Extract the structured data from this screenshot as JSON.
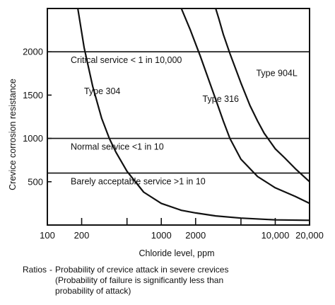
{
  "chart_data": {
    "type": "line",
    "title": "",
    "xlabel": "Chloride level, ppm",
    "ylabel": "Crevice corrosion resistance",
    "x_scale": "log",
    "xlim": [
      100,
      20000
    ],
    "ylim": [
      0,
      2500
    ],
    "grid": false,
    "x_tick_labels": [
      {
        "value": 100,
        "label": "100"
      },
      {
        "value": 200,
        "label": "200"
      },
      {
        "value": 1000,
        "label": "1000"
      },
      {
        "value": 2000,
        "label": "2000"
      },
      {
        "value": 10000,
        "label": "10,000"
      },
      {
        "value": 20000,
        "label": "20,000"
      }
    ],
    "x_unlabeled_ticks": [
      500,
      5000
    ],
    "y_ticks": [
      500,
      1000,
      1500,
      2000
    ],
    "threshold_lines": [
      {
        "y": 2000,
        "label": "Critical service < 1 in 10,000"
      },
      {
        "y": 1000,
        "label": "Normal service  <1 in 10"
      },
      {
        "y": 600,
        "label": "Barely acceptable service  >1 in 10"
      }
    ],
    "series": [
      {
        "name": "Type 304",
        "x": [
          185,
          210,
          250,
          300,
          350,
          400,
          500,
          700,
          1000,
          1500,
          2000,
          3000,
          5000,
          10000,
          20000
        ],
        "y": [
          2500,
          2050,
          1600,
          1230,
          1000,
          840,
          620,
          380,
          250,
          170,
          140,
          105,
          80,
          60,
          55
        ]
      },
      {
        "name": "Type 316",
        "x": [
          1500,
          1800,
          2200,
          2700,
          3000,
          3500,
          4000,
          5000,
          7000,
          10000,
          15000,
          20000
        ],
        "y": [
          2500,
          2250,
          1950,
          1620,
          1450,
          1200,
          1000,
          760,
          560,
          430,
          330,
          250
        ]
      },
      {
        "name": "Type 904L",
        "x": [
          3000,
          3200,
          3500,
          4000,
          5000,
          6000,
          7000,
          8000,
          10000,
          12000,
          15000,
          20000
        ],
        "y": [
          2500,
          2380,
          2200,
          1980,
          1640,
          1380,
          1200,
          1060,
          880,
          780,
          650,
          500
        ]
      }
    ],
    "curve_label_positions": [
      {
        "name": "Type 304",
        "x": 210,
        "y": 1510
      },
      {
        "name": "Type 316",
        "x": 2300,
        "y": 1420
      },
      {
        "name": "Type 904L",
        "x": 6800,
        "y": 1720
      }
    ]
  },
  "caption": {
    "heading": "Ratios",
    "dash": "-",
    "lines": [
      "Probability of crevice attack in severe crevices",
      "(Probability of failure is significantly less than",
      "probability of attack)"
    ]
  },
  "colors": {
    "ink": "#111111",
    "background": "#ffffff"
  }
}
